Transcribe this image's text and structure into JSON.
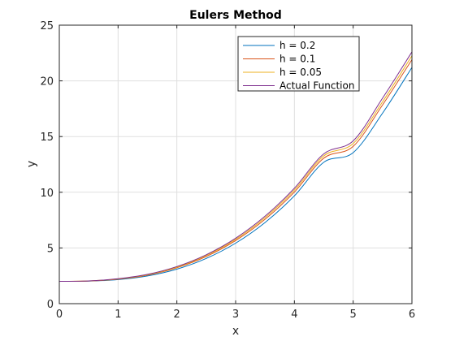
{
  "chart_data": {
    "type": "line",
    "title": "Eulers Method",
    "xlabel": "x",
    "ylabel": "y",
    "xlim": [
      0,
      6
    ],
    "ylim": [
      0,
      25
    ],
    "xticks": [
      "0",
      "1",
      "2",
      "3",
      "4",
      "5",
      "6"
    ],
    "yticks": [
      "0",
      "5",
      "10",
      "15",
      "20",
      "25"
    ],
    "grid": true,
    "legend_position": "top-right",
    "x": [
      0,
      0.5,
      1,
      1.5,
      2,
      2.5,
      3,
      3.5,
      4,
      4.5,
      5,
      5.5,
      6
    ],
    "series": [
      {
        "name": "h = 0.2",
        "color": "#0072bd",
        "values": [
          2.0,
          2.02,
          2.16,
          2.49,
          3.1,
          4.06,
          5.43,
          7.28,
          9.68,
          12.69,
          13.56,
          17.1,
          21.2
        ]
      },
      {
        "name": "h = 0.1",
        "color": "#d95319",
        "values": [
          2.0,
          2.03,
          2.2,
          2.56,
          3.22,
          4.23,
          5.66,
          7.57,
          10.02,
          13.06,
          14.12,
          17.84,
          21.9
        ]
      },
      {
        "name": "h = 0.05",
        "color": "#edb120",
        "values": [
          2.0,
          2.04,
          2.22,
          2.6,
          3.27,
          4.32,
          5.77,
          7.72,
          10.2,
          13.27,
          14.38,
          18.12,
          22.25
        ]
      },
      {
        "name": "Actual Function",
        "color": "#7e2f8e",
        "values": [
          2.0,
          2.04,
          2.24,
          2.63,
          3.33,
          4.39,
          5.87,
          7.85,
          10.36,
          13.45,
          14.61,
          18.45,
          22.6
        ]
      }
    ]
  }
}
